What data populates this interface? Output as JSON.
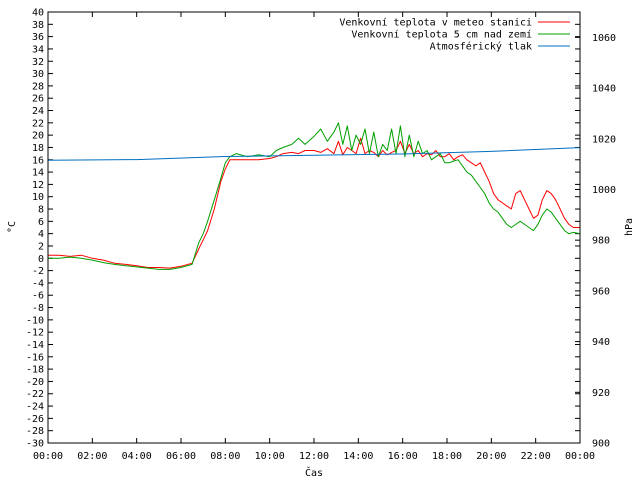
{
  "chart_data": {
    "type": "line",
    "xlabel": "Čas",
    "ylabel": "°C",
    "y2label": "hPa",
    "x_ticks": [
      "00:00",
      "02:00",
      "04:00",
      "06:00",
      "08:00",
      "10:00",
      "12:00",
      "14:00",
      "16:00",
      "18:00",
      "20:00",
      "22:00",
      "00:00"
    ],
    "x_range_hours": [
      0,
      24
    ],
    "ylim": [
      -30,
      40
    ],
    "y_step": 2,
    "y2lim": [
      900,
      1070
    ],
    "y2_ticks": [
      900,
      920,
      940,
      960,
      980,
      1000,
      1020,
      1040,
      1060
    ],
    "grid": false,
    "legend_position": "top-right",
    "series": [
      {
        "name": "Venkovní teplota v meteo stanici",
        "color": "#ff0000",
        "axis": "y",
        "x": [
          0,
          0.5,
          1,
          1.5,
          2,
          2.5,
          3,
          3.5,
          4,
          4.5,
          5,
          5.5,
          6,
          6.5,
          6.8,
          7,
          7.2,
          7.5,
          7.8,
          8,
          8.2,
          8.5,
          9,
          9.5,
          10,
          10.3,
          10.6,
          11,
          11.3,
          11.6,
          12,
          12.3,
          12.6,
          12.9,
          13.1,
          13.3,
          13.5,
          13.7,
          13.9,
          14.1,
          14.3,
          14.5,
          14.7,
          14.9,
          15.1,
          15.3,
          15.5,
          15.7,
          15.9,
          16.1,
          16.3,
          16.5,
          16.7,
          16.9,
          17.1,
          17.3,
          17.5,
          17.7,
          17.9,
          18.1,
          18.3,
          18.5,
          18.7,
          18.9,
          19.1,
          19.3,
          19.5,
          19.7,
          19.9,
          20.1,
          20.3,
          20.5,
          20.7,
          20.9,
          21.1,
          21.3,
          21.5,
          21.7,
          21.9,
          22.1,
          22.3,
          22.5,
          22.7,
          22.9,
          23.1,
          23.3,
          23.5,
          23.7,
          24
        ],
        "values": [
          0.5,
          0.5,
          0.3,
          0.5,
          0.0,
          -0.3,
          -0.8,
          -1.0,
          -1.2,
          -1.5,
          -1.5,
          -1.6,
          -1.3,
          -0.8,
          1.5,
          3.0,
          4.5,
          8.0,
          12.5,
          14.5,
          16.0,
          16.0,
          16.0,
          16.0,
          16.2,
          16.5,
          17.0,
          17.2,
          17.0,
          17.5,
          17.5,
          17.2,
          17.8,
          17.0,
          19.0,
          16.8,
          18.0,
          17.5,
          17.0,
          19.5,
          17.0,
          17.5,
          17.2,
          16.5,
          17.5,
          16.8,
          17.2,
          17.5,
          19.0,
          17.0,
          18.5,
          17.0,
          17.5,
          16.5,
          17.0,
          16.8,
          17.5,
          16.5,
          16.5,
          17.0,
          16.0,
          16.5,
          16.8,
          16.0,
          15.5,
          15.0,
          15.5,
          14.0,
          12.5,
          10.5,
          9.5,
          9.0,
          8.5,
          8.0,
          10.5,
          11.0,
          9.5,
          8.0,
          6.5,
          7.0,
          9.5,
          11.0,
          10.5,
          9.5,
          8.0,
          6.5,
          5.5,
          5.0,
          5.0
        ]
      },
      {
        "name": "Venkovní teplota 5 cm nad zemí",
        "color": "#00a000",
        "axis": "y",
        "x": [
          0,
          0.5,
          1,
          1.5,
          2,
          2.5,
          3,
          3.5,
          4,
          4.5,
          5,
          5.5,
          6,
          6.5,
          6.8,
          7,
          7.2,
          7.5,
          7.8,
          8,
          8.2,
          8.5,
          9,
          9.5,
          10,
          10.3,
          10.6,
          11,
          11.3,
          11.6,
          12,
          12.3,
          12.6,
          12.9,
          13.1,
          13.3,
          13.5,
          13.7,
          13.9,
          14.1,
          14.3,
          14.5,
          14.7,
          14.9,
          15.1,
          15.3,
          15.5,
          15.7,
          15.9,
          16.1,
          16.3,
          16.5,
          16.7,
          16.9,
          17.1,
          17.3,
          17.5,
          17.7,
          17.9,
          18.1,
          18.3,
          18.5,
          18.7,
          18.9,
          19.1,
          19.3,
          19.5,
          19.7,
          19.9,
          20.1,
          20.3,
          20.5,
          20.7,
          20.9,
          21.1,
          21.3,
          21.5,
          21.7,
          21.9,
          22.1,
          22.3,
          22.5,
          22.7,
          22.9,
          23.1,
          23.3,
          23.5,
          23.7,
          24
        ],
        "values": [
          0.0,
          0.0,
          0.2,
          0.0,
          -0.3,
          -0.7,
          -1.0,
          -1.2,
          -1.4,
          -1.6,
          -1.8,
          -1.8,
          -1.5,
          -1.0,
          2.5,
          4.0,
          6.0,
          9.5,
          13.0,
          15.5,
          16.5,
          17.0,
          16.5,
          16.8,
          16.5,
          17.5,
          18.0,
          18.5,
          19.5,
          18.5,
          19.8,
          21.0,
          19.0,
          20.5,
          22.0,
          18.5,
          21.5,
          17.5,
          20.0,
          18.5,
          21.0,
          17.0,
          20.5,
          16.5,
          18.5,
          17.5,
          21.0,
          17.0,
          21.5,
          16.5,
          20.0,
          16.5,
          19.0,
          17.0,
          17.5,
          16.0,
          16.5,
          17.0,
          15.5,
          15.5,
          15.8,
          16.0,
          15.0,
          14.0,
          13.5,
          12.5,
          11.5,
          10.5,
          9.0,
          8.0,
          7.5,
          6.5,
          5.5,
          5.0,
          5.5,
          6.0,
          5.5,
          5.0,
          4.5,
          5.5,
          7.0,
          8.0,
          7.5,
          6.5,
          5.5,
          4.5,
          4.0,
          4.2,
          4.0
        ]
      },
      {
        "name": "Atmosférický tlak",
        "color": "#0070c0",
        "axis": "y2",
        "x": [
          0,
          4,
          8,
          12,
          16,
          20,
          24
        ],
        "values": [
          1011.5,
          1011.8,
          1013.0,
          1013.5,
          1014.0,
          1015.0,
          1016.5
        ]
      }
    ]
  }
}
